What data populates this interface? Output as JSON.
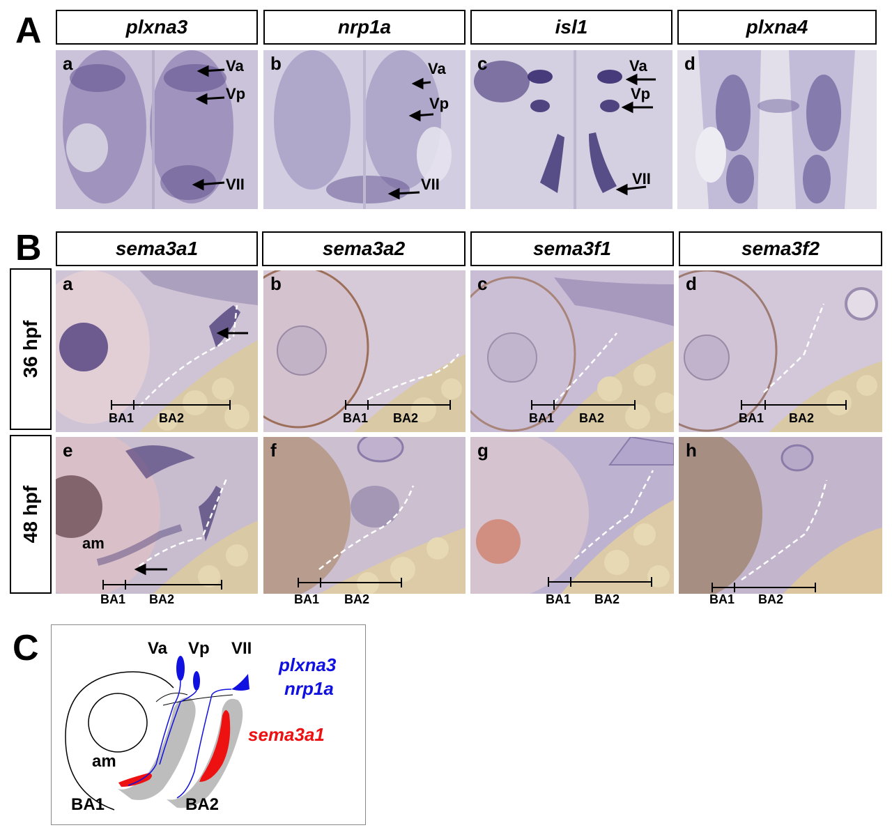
{
  "sectionA": {
    "letter": "A",
    "genes": [
      "plxna3",
      "nrp1a",
      "isl1",
      "plxna4"
    ],
    "panels": [
      {
        "letter": "a",
        "labels": [
          "Va",
          "Vp",
          "VII"
        ]
      },
      {
        "letter": "b",
        "labels": [
          "Va",
          "Vp",
          "VII"
        ]
      },
      {
        "letter": "c",
        "labels": [
          "Va",
          "Vp",
          "VII"
        ]
      },
      {
        "letter": "d",
        "labels": []
      }
    ]
  },
  "sectionB": {
    "letter": "B",
    "genes": [
      "sema3a1",
      "sema3a2",
      "sema3f1",
      "sema3f2"
    ],
    "rows": [
      "36 hpf",
      "48 hpf"
    ],
    "panels_row1": [
      "a",
      "b",
      "c",
      "d"
    ],
    "panels_row2": [
      "e",
      "f",
      "g",
      "h"
    ],
    "arch_labels": [
      "BA1",
      "BA2"
    ],
    "am_label": "am"
  },
  "sectionC": {
    "letter": "C",
    "nerves": [
      "Va",
      "Vp",
      "VII"
    ],
    "blue_genes": [
      "plxna3",
      "nrp1a"
    ],
    "red_gene": "sema3a1",
    "am": "am",
    "ba1": "BA1",
    "ba2": "BA2",
    "colors": {
      "blue": "#1010e0",
      "red": "#ee1111",
      "gray": "#bdbdbd"
    }
  }
}
